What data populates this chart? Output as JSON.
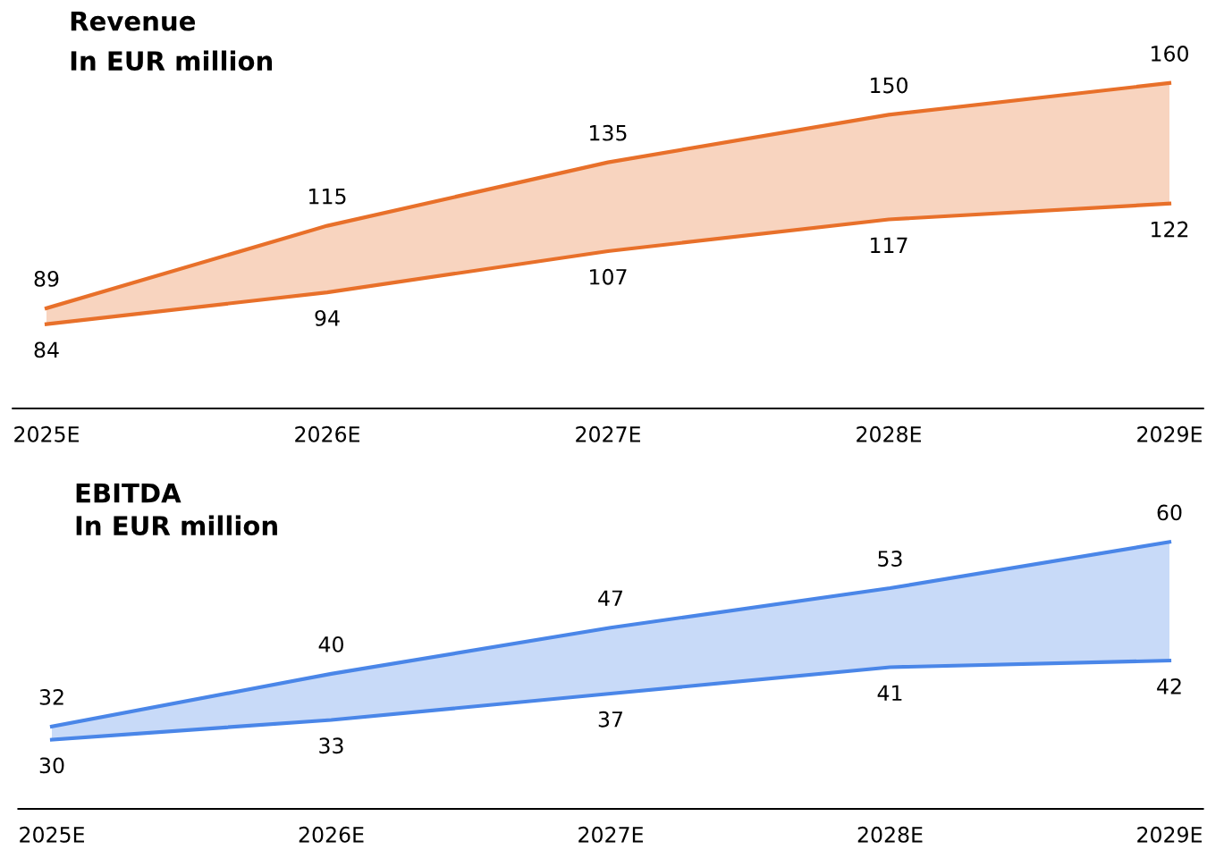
{
  "chart_data": [
    {
      "type": "line",
      "title": "Revenue",
      "subtitle": "In EUR million",
      "categories": [
        "2025E",
        "2026E",
        "2027E",
        "2028E",
        "2029E"
      ],
      "tick_labels": "x",
      "data_labels": true,
      "marker": "none",
      "series": [
        {
          "color": "#e8702a",
          "values": [
            84,
            94,
            107,
            117,
            122
          ]
        },
        {
          "color": "#e8702a",
          "values": [
            89,
            115,
            135,
            150,
            160
          ],
          "lower": [
            84,
            94,
            107,
            117,
            122
          ],
          "upper": [
            89,
            115,
            135,
            150,
            160
          ]
        }
      ]
    },
    {
      "type": "line",
      "title": "EBITDA",
      "subtitle": "In EUR million",
      "categories": [
        "2025E",
        "2026E",
        "2027E",
        "2028E",
        "2029E"
      ],
      "tick_labels": "x",
      "data_labels": true,
      "marker": "none",
      "series": [
        {
          "color": "#4a86e8",
          "values": [
            30,
            33,
            37,
            41,
            42
          ]
        },
        {
          "color": "#4a86e8",
          "values": [
            32,
            40,
            47,
            53,
            60
          ],
          "lower": [
            30,
            33,
            37,
            41,
            42
          ],
          "upper": [
            32,
            40,
            47,
            53,
            60
          ]
        }
      ]
    }
  ]
}
